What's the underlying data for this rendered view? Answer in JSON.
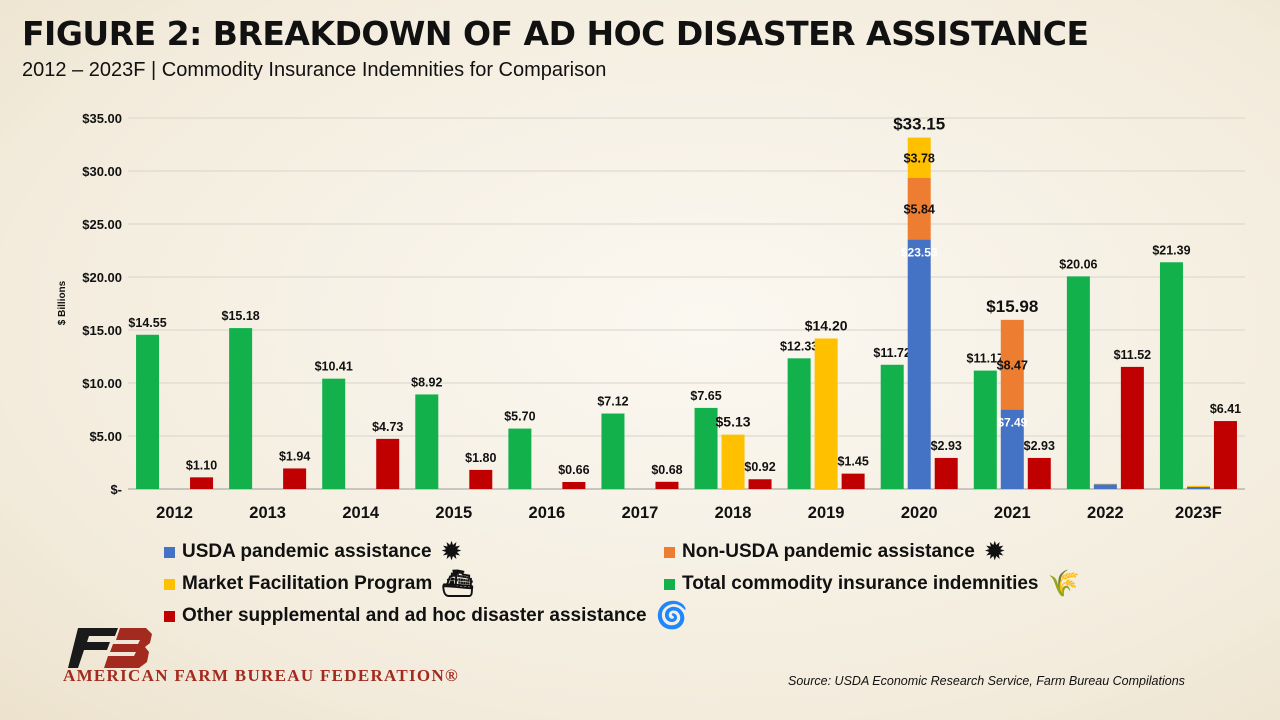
{
  "header": {
    "title": "FIGURE 2: BREAKDOWN OF AD HOC DISASTER ASSISTANCE",
    "subtitle": "2012 – 2023F | Commodity Insurance Indemnities for Comparison"
  },
  "chart_data": {
    "type": "bar",
    "title": "FIGURE 2: BREAKDOWN OF AD HOC DISASTER ASSISTANCE",
    "subtitle": "2012 – 2023F | Commodity Insurance Indemnities for Comparison",
    "ylabel": "$ Billions",
    "xlabel": "",
    "ylim": [
      0,
      35
    ],
    "yticks": [
      0,
      5,
      10,
      15,
      20,
      25,
      30,
      35
    ],
    "ytick_labels": [
      "$-",
      "$5.00",
      "$10.00",
      "$15.00",
      "$20.00",
      "$25.00",
      "$30.00",
      "$35.00"
    ],
    "grid": true,
    "legend_position": "bottom",
    "categories": [
      "2012",
      "2013",
      "2014",
      "2015",
      "2016",
      "2017",
      "2018",
      "2019",
      "2020",
      "2021",
      "2022",
      "2023F"
    ],
    "stack_layout": "bar 1: Total commodity insurance indemnities; bar 2: stacked USDA pandemic assistance, Non-USDA pandemic assistance, Market Facilitation Program; bar 3: Other supplemental and ad hoc disaster assistance",
    "series": [
      {
        "name": "USDA pandemic assistance",
        "color": "#4472c4",
        "values": [
          0,
          0,
          0,
          0,
          0,
          0,
          0,
          0,
          23.53,
          7.49,
          0.45,
          0.2
        ],
        "labels": [
          "",
          "",
          "",
          "",
          "",
          "",
          "",
          "",
          "$23.53",
          "$7.49",
          "",
          ""
        ]
      },
      {
        "name": "Non-USDA pandemic assistance",
        "color": "#ed7d31",
        "values": [
          0,
          0,
          0,
          0,
          0,
          0,
          0,
          0,
          5.84,
          8.47,
          0,
          0
        ],
        "labels": [
          "",
          "",
          "",
          "",
          "",
          "",
          "",
          "",
          "$5.84",
          "$8.47",
          "",
          ""
        ]
      },
      {
        "name": "Market Facilitation Program",
        "color": "#ffc000",
        "values": [
          0,
          0,
          0,
          0,
          0,
          0,
          5.13,
          14.2,
          3.78,
          0,
          0.05,
          0.1
        ],
        "labels": [
          "",
          "",
          "",
          "",
          "",
          "",
          "$5.13",
          "$14.20",
          "$3.78",
          "",
          "",
          ""
        ]
      },
      {
        "name": "Total commodity insurance indemnities",
        "color": "#12b14c",
        "values": [
          14.55,
          15.18,
          10.41,
          8.92,
          5.7,
          7.12,
          7.65,
          12.33,
          11.72,
          11.17,
          20.06,
          21.39
        ],
        "labels": [
          "$14.55",
          "$15.18",
          "$10.41",
          "$8.92",
          "$5.70",
          "$7.12",
          "$7.65",
          "$12.33",
          "$11.72",
          "$11.17",
          "$20.06",
          "$21.39"
        ]
      },
      {
        "name": "Other supplemental and ad hoc disaster assistance",
        "color": "#c00000",
        "values": [
          1.1,
          1.94,
          4.73,
          1.8,
          0.66,
          0.68,
          0.92,
          1.45,
          2.93,
          2.93,
          11.52,
          6.41
        ],
        "labels": [
          "$1.10",
          "$1.94",
          "$4.73",
          "$1.80",
          "$0.66",
          "$0.68",
          "$0.92",
          "$1.45",
          "$2.93",
          "$2.93",
          "$11.52",
          "$6.41"
        ]
      }
    ],
    "totals": [
      {
        "category": "2020",
        "label": "$33.15"
      },
      {
        "category": "2021",
        "label": "$15.98"
      }
    ]
  },
  "legend": {
    "items": [
      {
        "label": "USDA pandemic assistance",
        "color": "#4472c4",
        "icon": "virus-icon"
      },
      {
        "label": "Non-USDA pandemic assistance",
        "color": "#ed7d31",
        "icon": "virus-icon"
      },
      {
        "label": "Market Facilitation Program",
        "color": "#ffc000",
        "icon": "cargo-ship-icon"
      },
      {
        "label": "Total commodity insurance indemnities",
        "color": "#12b14c",
        "icon": "wheat-crop-icon"
      },
      {
        "label": "Other supplemental and ad hoc disaster assistance",
        "color": "#c00000",
        "icon": "hurricane-icon"
      }
    ]
  },
  "footer": {
    "logo_letters": "FB",
    "logo_color": "#a22a1e",
    "org_name": "AMERICAN FARM BUREAU FEDERATION®",
    "source": "Source: USDA Economic Research Service, Farm Bureau Compilations"
  }
}
